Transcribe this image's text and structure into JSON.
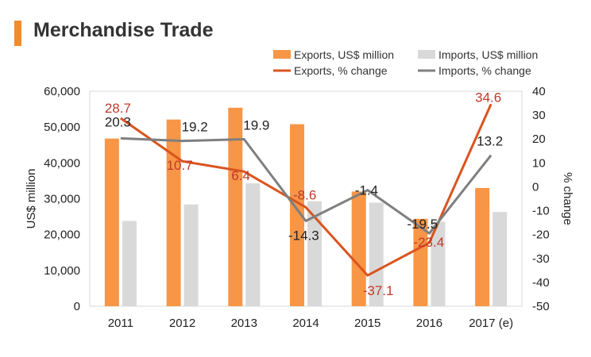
{
  "title": "Merchandise Trade",
  "colors": {
    "accent": "#f28c2a",
    "exports_bar": "#f79646",
    "imports_bar": "#d9d9d9",
    "exports_line": "#d9541e",
    "imports_line": "#7f7f7f",
    "exports_label": "#c0392b",
    "imports_label": "#222222"
  },
  "chart_data": {
    "type": "bar",
    "categories": [
      "2011",
      "2012",
      "2013",
      "2014",
      "2015",
      "2016",
      "2017 (e)"
    ],
    "ylabel": "US$ million",
    "y2label": "% change",
    "ylim": [
      0,
      60000
    ],
    "y2lim": [
      -50,
      40
    ],
    "yticks": [
      "0",
      "10,000",
      "20,000",
      "30,000",
      "40,000",
      "50,000",
      "60,000"
    ],
    "y2ticks": [
      "-50",
      "-40",
      "-30",
      "-20",
      "-10",
      "0",
      "10",
      "20",
      "30",
      "40"
    ],
    "grid": false,
    "legend_position": "top-right",
    "bar_series": [
      {
        "name": "Exports, US$ million",
        "values": [
          46800,
          52100,
          55400,
          50800,
          32000,
          24400,
          33000
        ]
      },
      {
        "name": "Imports, US$ million",
        "values": [
          23800,
          28400,
          34300,
          29300,
          28900,
          23600,
          26300
        ]
      }
    ],
    "line_series": [
      {
        "name": "Exports, % change",
        "values": [
          28.7,
          10.7,
          6.4,
          -8.6,
          -37.1,
          -23.4,
          34.6
        ],
        "labels": [
          "28.7",
          "10.7",
          "6.4",
          "-8.6",
          "-37.1",
          "-23.4",
          "34.6"
        ]
      },
      {
        "name": "Imports, % change",
        "values": [
          20.3,
          19.2,
          19.9,
          -14.3,
          -1.4,
          -19.5,
          13.2
        ],
        "labels": [
          "20.3",
          "19.2",
          "19.9",
          "-14.3",
          "-1.4",
          "-19.5",
          "13.2"
        ]
      }
    ]
  }
}
